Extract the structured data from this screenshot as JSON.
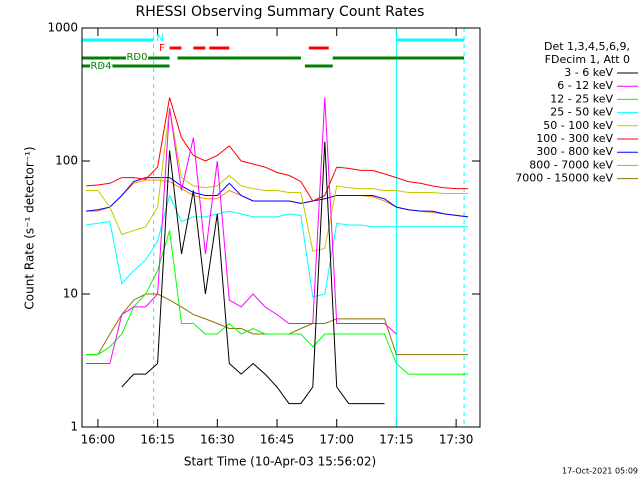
{
  "chart_data": {
    "type": "line",
    "title": "RHESSI Observing Summary Count Rates",
    "x_label": "Start Time (10-Apr-03 15:56:02)",
    "y_label": "Count Rate (s⁻¹ detector⁻¹)",
    "legend_title": [
      "Det 1,3,4,5,6,9,",
      "FDecim 1, Att 0"
    ],
    "footer": "17-Oct-2021 05:09",
    "y_scale": "log",
    "xlim": [
      "15:56",
      "17:36"
    ],
    "xticks": [
      "16:00",
      "16:15",
      "16:30",
      "16:45",
      "17:00",
      "17:15",
      "17:30"
    ],
    "ylim": [
      1,
      1000
    ],
    "yticks": [
      1,
      10,
      100,
      1000
    ],
    "x": [
      "15:57",
      "16:00",
      "16:03",
      "16:06",
      "16:09",
      "16:12",
      "16:15",
      "16:18",
      "16:21",
      "16:24",
      "16:27",
      "16:30",
      "16:33",
      "16:36",
      "16:39",
      "16:42",
      "16:45",
      "16:48",
      "16:51",
      "16:54",
      "16:57",
      "17:00",
      "17:03",
      "17:06",
      "17:09",
      "17:12",
      "17:15",
      "17:18",
      "17:21",
      "17:24",
      "17:27",
      "17:30",
      "17:33"
    ],
    "series": [
      {
        "name": "3 - 6 keV",
        "color": "#000000",
        "values": [
          null,
          null,
          null,
          2,
          2.5,
          2.5,
          3,
          120,
          20,
          60,
          10,
          40,
          3,
          2.5,
          3,
          2.5,
          2,
          1.5,
          1.5,
          2,
          140,
          2,
          1.5,
          1.5,
          1.5,
          1.5,
          null,
          null,
          null,
          null,
          null,
          null,
          null
        ]
      },
      {
        "name": "6 - 12 keV",
        "color": "#ff00ff",
        "values": [
          3,
          3,
          3,
          7,
          8,
          8,
          10,
          250,
          60,
          150,
          20,
          100,
          9,
          8,
          10,
          8,
          7,
          6,
          6,
          6,
          300,
          6,
          6,
          6,
          6,
          6,
          5,
          null,
          null,
          null,
          null,
          null,
          null
        ]
      },
      {
        "name": "12 - 25 keV",
        "color": "#00ff00",
        "values": [
          3.5,
          3.5,
          4,
          5,
          8,
          10,
          15,
          30,
          6,
          6,
          5,
          5,
          6,
          5,
          5.5,
          5,
          5,
          5,
          5,
          4,
          5,
          5,
          5,
          5,
          5,
          5,
          3,
          2.5,
          2.5,
          2.5,
          2.5,
          2.5,
          2.5
        ]
      },
      {
        "name": "25 - 50 keV",
        "color": "#00ffff",
        "values": [
          33,
          34,
          35,
          12,
          15,
          18,
          25,
          55,
          35,
          38,
          38,
          40,
          42,
          40,
          38,
          38,
          38,
          40,
          39,
          9.5,
          10,
          34,
          33,
          33,
          32,
          32,
          32,
          32,
          32,
          32,
          32,
          32,
          32
        ]
      },
      {
        "name": "50 - 100 keV",
        "color": "#c8c800",
        "values": [
          60,
          60,
          45,
          28,
          30,
          32,
          45,
          250,
          75,
          65,
          63,
          65,
          78,
          65,
          62,
          60,
          60,
          58,
          58,
          21,
          22,
          65,
          63,
          62,
          62,
          60,
          60,
          58,
          58,
          58,
          57,
          57,
          57
        ]
      },
      {
        "name": "100 - 300 keV",
        "color": "#ff0000",
        "values": [
          65,
          66,
          68,
          75,
          75,
          73,
          90,
          300,
          150,
          110,
          100,
          110,
          130,
          100,
          95,
          90,
          82,
          78,
          70,
          50,
          55,
          90,
          88,
          85,
          85,
          80,
          75,
          70,
          68,
          65,
          63,
          62,
          62
        ]
      },
      {
        "name": "300 - 800 keV",
        "color": "#0000ff",
        "values": [
          42,
          43,
          45,
          55,
          70,
          75,
          75,
          75,
          65,
          58,
          55,
          55,
          68,
          55,
          50,
          50,
          50,
          50,
          48,
          50,
          52,
          55,
          55,
          55,
          55,
          52,
          45,
          43,
          42,
          42,
          40,
          39,
          38
        ]
      },
      {
        "name": "800 - 7000 keV",
        "color": "#ff8c00",
        "values": [
          42,
          42,
          45,
          55,
          68,
          72,
          72,
          70,
          62,
          55,
          52,
          52,
          60,
          55,
          50,
          50,
          50,
          50,
          48,
          50,
          52,
          55,
          55,
          55,
          54,
          50,
          45,
          43,
          42,
          41,
          40,
          39,
          38
        ]
      },
      {
        "name": "7000 - 15000 keV",
        "color": "#8b7500",
        "values": [
          3.5,
          3.5,
          5,
          7,
          9,
          10,
          10,
          9,
          8,
          7,
          6.5,
          6,
          5.5,
          5.5,
          5,
          5,
          5,
          5,
          5.5,
          6,
          6,
          6.5,
          6.5,
          6.5,
          6.5,
          6.5,
          3.5,
          3.5,
          3.5,
          3.5,
          3.5,
          3.5,
          3.5
        ]
      }
    ],
    "flags": [
      {
        "name": "N",
        "color": "#00ffff",
        "marker_lines": true,
        "intervals": [
          [
            "15:56",
            "16:14"
          ],
          [
            "17:15",
            "17:32"
          ]
        ]
      },
      {
        "name": "F",
        "color": "#ff0000",
        "intervals": [
          [
            "16:18",
            "16:21"
          ],
          [
            "16:24",
            "16:27"
          ],
          [
            "16:28",
            "16:33"
          ],
          [
            "16:53",
            "16:58"
          ]
        ]
      },
      {
        "name": "RD0",
        "color": "#008000",
        "intervals": [
          [
            "15:56",
            "16:18"
          ],
          [
            "16:20",
            "16:51"
          ],
          [
            "16:59",
            "17:32"
          ]
        ]
      },
      {
        "name": "RD4",
        "color": "#008000",
        "intervals": [
          [
            "15:56",
            "16:18"
          ],
          [
            "16:52",
            "16:59"
          ]
        ]
      }
    ]
  }
}
